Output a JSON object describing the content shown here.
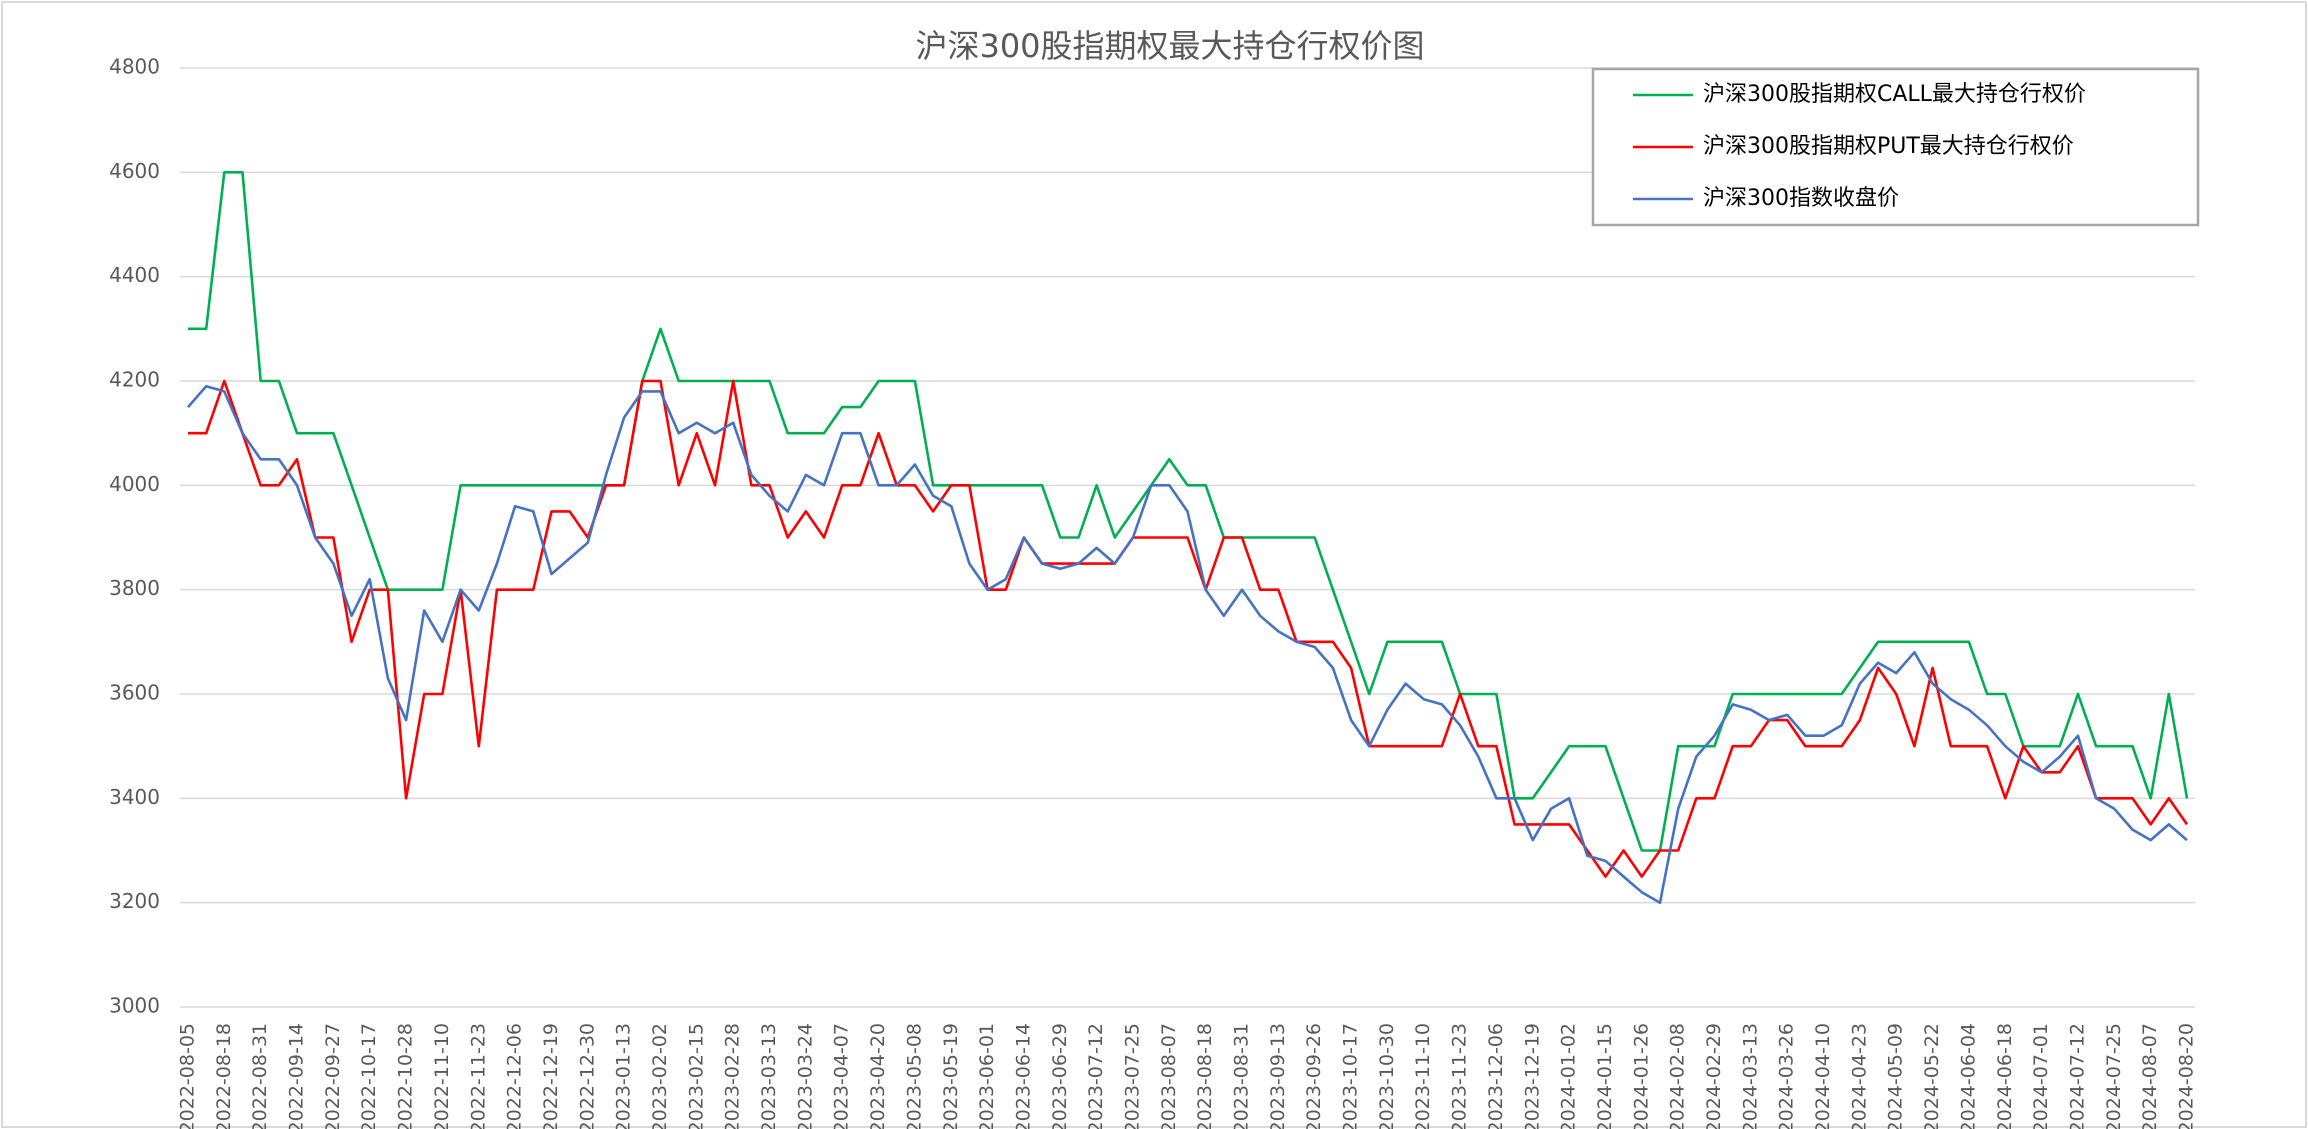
{
  "chart_data": {
    "type": "line",
    "title": "沪深300股指期权最大持仓行权价图",
    "categories": [
      "2022-08-05",
      null,
      "2022-08-18",
      null,
      "2022-08-31",
      null,
      "2022-09-14",
      null,
      "2022-09-27",
      null,
      "2022-10-17",
      null,
      "2022-10-28",
      null,
      "2022-11-10",
      null,
      "2022-11-23",
      null,
      "2022-12-06",
      null,
      "2022-12-19",
      null,
      "2022-12-30",
      null,
      "2023-01-13",
      null,
      "2023-02-02",
      null,
      "2023-02-15",
      null,
      "2023-02-28",
      null,
      "2023-03-13",
      null,
      "2023-03-24",
      null,
      "2023-04-07",
      null,
      "2023-04-20",
      null,
      "2023-05-08",
      null,
      "2023-05-19",
      null,
      "2023-06-01",
      null,
      "2023-06-14",
      null,
      "2023-06-29",
      null,
      "2023-07-12",
      null,
      "2023-07-25",
      null,
      "2023-08-07",
      null,
      "2023-08-18",
      null,
      "2023-08-31",
      null,
      "2023-09-13",
      null,
      "2023-09-26",
      null,
      "2023-10-17",
      null,
      "2023-10-30",
      null,
      "2023-11-10",
      null,
      "2023-11-23",
      null,
      "2023-12-06",
      null,
      "2023-12-19",
      null,
      "2024-01-02",
      null,
      "2024-01-15",
      null,
      "2024-01-26",
      null,
      "2024-02-08",
      null,
      "2024-02-29",
      null,
      "2024-03-13",
      null,
      "2024-03-26",
      null,
      "2024-04-10",
      null,
      "2024-04-23",
      null,
      "2024-05-09",
      null,
      "2024-05-22",
      null,
      "2024-06-04",
      null,
      "2024-06-18",
      null,
      "2024-07-01",
      null,
      "2024-07-12",
      null,
      "2024-07-25",
      null,
      "2024-08-07",
      null,
      "2024-08-20"
    ],
    "series": [
      {
        "name": "沪深300股指期权CALL最大持仓行权价",
        "color": "#00b050",
        "values": [
          4300,
          4300,
          4600,
          4600,
          4200,
          4200,
          4100,
          4100,
          4100,
          4000,
          3900,
          3800,
          3800,
          3800,
          3800,
          4000,
          4000,
          4000,
          4000,
          4000,
          4000,
          4000,
          4000,
          4000,
          4000,
          4200,
          4300,
          4200,
          4200,
          4200,
          4200,
          4200,
          4200,
          4100,
          4100,
          4100,
          4150,
          4150,
          4200,
          4200,
          4200,
          4000,
          4000,
          4000,
          4000,
          4000,
          4000,
          4000,
          3900,
          3900,
          4000,
          3900,
          3950,
          4000,
          4050,
          4000,
          4000,
          3900,
          3900,
          3900,
          3900,
          3900,
          3900,
          3800,
          3700,
          3600,
          3700,
          3700,
          3700,
          3700,
          3600,
          3600,
          3600,
          3400,
          3400,
          3450,
          3500,
          3500,
          3500,
          3400,
          3300,
          3300,
          3500,
          3500,
          3500,
          3600,
          3600,
          3600,
          3600,
          3600,
          3600,
          3600,
          3650,
          3700,
          3700,
          3700,
          3700,
          3700,
          3700,
          3600,
          3600,
          3500,
          3500,
          3500,
          3600,
          3500,
          3500,
          3500,
          3400,
          3600,
          3400
        ]
      },
      {
        "name": "沪深300股指期权PUT最大持仓行权价",
        "color": "#ff0000",
        "values": [
          4100,
          4100,
          4200,
          4100,
          4000,
          4000,
          4050,
          3900,
          3900,
          3700,
          3800,
          3800,
          3400,
          3600,
          3600,
          3800,
          3500,
          3800,
          3800,
          3800,
          3950,
          3950,
          3900,
          4000,
          4000,
          4200,
          4200,
          4000,
          4100,
          4000,
          4200,
          4000,
          4000,
          3900,
          3950,
          3900,
          4000,
          4000,
          4100,
          4000,
          4000,
          3950,
          4000,
          4000,
          3800,
          3800,
          3900,
          3850,
          3850,
          3850,
          3850,
          3850,
          3900,
          3900,
          3900,
          3900,
          3800,
          3900,
          3900,
          3800,
          3800,
          3700,
          3700,
          3700,
          3650,
          3500,
          3500,
          3500,
          3500,
          3500,
          3600,
          3500,
          3500,
          3350,
          3350,
          3350,
          3350,
          3300,
          3250,
          3300,
          3250,
          3300,
          3300,
          3400,
          3400,
          3500,
          3500,
          3550,
          3550,
          3500,
          3500,
          3500,
          3550,
          3650,
          3600,
          3500,
          3650,
          3500,
          3500,
          3500,
          3400,
          3500,
          3450,
          3450,
          3500,
          3400,
          3400,
          3400,
          3350,
          3400,
          3350
        ]
      },
      {
        "name": "沪深300指数收盘价",
        "color": "#4472c4",
        "values": [
          4150,
          4190,
          4180,
          4100,
          4050,
          4050,
          4000,
          3900,
          3850,
          3750,
          3820,
          3630,
          3550,
          3760,
          3700,
          3800,
          3760,
          3850,
          3960,
          3950,
          3830,
          3860,
          3890,
          4020,
          4130,
          4180,
          4180,
          4100,
          4120,
          4100,
          4120,
          4020,
          3980,
          3950,
          4020,
          4000,
          4100,
          4100,
          4000,
          4000,
          4040,
          3980,
          3960,
          3850,
          3800,
          3820,
          3900,
          3850,
          3840,
          3850,
          3880,
          3850,
          3900,
          4000,
          4000,
          3950,
          3800,
          3750,
          3800,
          3750,
          3720,
          3700,
          3690,
          3650,
          3550,
          3500,
          3570,
          3620,
          3590,
          3580,
          3540,
          3480,
          3400,
          3400,
          3320,
          3380,
          3400,
          3290,
          3280,
          3250,
          3220,
          3200,
          3380,
          3480,
          3520,
          3580,
          3570,
          3550,
          3560,
          3520,
          3520,
          3540,
          3620,
          3660,
          3640,
          3680,
          3620,
          3590,
          3570,
          3540,
          3500,
          3470,
          3450,
          3480,
          3520,
          3400,
          3380,
          3340,
          3320,
          3350,
          3320
        ]
      }
    ],
    "ylim": [
      3000,
      4800
    ],
    "yticks": [
      3000,
      3200,
      3400,
      3600,
      3800,
      4000,
      4200,
      4400,
      4600,
      4800
    ],
    "grid": true,
    "legend": "upper right"
  }
}
